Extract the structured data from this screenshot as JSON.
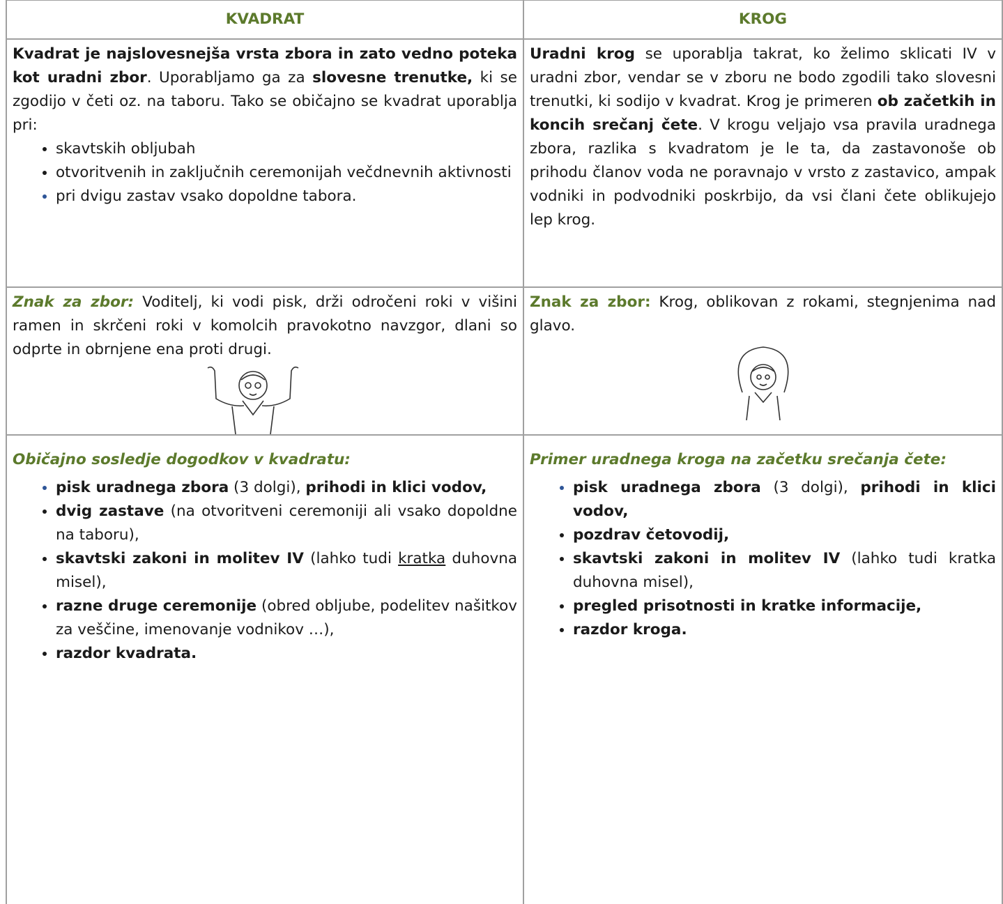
{
  "table": {
    "headers": [
      "KVADRAT",
      "KROG"
    ],
    "kvadrat": {
      "intro": [
        "Kvadrat je najslovesnejša vrsta zbora in zato vedno poteka kot uradni zbor",
        ". Uporabljamo ga za ",
        "slovesne trenutke,",
        " ki se zgodijo v četi oz. na taboru. Tako se običajno se kvadrat uporablja pri:"
      ],
      "uses": [
        "skavtskih obljubah",
        "otvoritvenih in zaključnih ceremonijah večdnevnih aktivnosti",
        "pri dvigu zastav vsako dopoldne tabora."
      ],
      "sign_label": "Znak za zbor:",
      "sign_text": " Voditelj, ki vodi pisk, drži odročeni roki v višini ramen in skrčeni roki v komolcih pravokotno navzgor, dlani so odprte in obrnjene ena proti drugi.",
      "sequence_title": "Običajno sosledje dogodkov v kvadratu:",
      "sequence": [
        [
          "pisk uradnega zbora",
          " (3 dolgi), ",
          "prihodi in klici vodov,"
        ],
        [
          "dvig zastave",
          " (na otvoritveni ceremoniji ali vsako dopoldne na taboru),"
        ],
        [
          "skavtski zakoni in molitev IV",
          " (lahko tudi ",
          "kratka",
          " duhovna misel),"
        ],
        [
          "razne druge ceremonije",
          " (obred obljube, podelitev našitkov za veščine, imenovanje vodnikov …),"
        ],
        [
          "razdor kvadrata."
        ]
      ]
    },
    "krog": {
      "intro": [
        "Uradni krog",
        " se uporablja takrat, ko želimo sklicati IV v uradni zbor, vendar se v zboru ne bodo zgodili tako slovesni trenutki, ki sodijo v kvadrat. Krog je primeren ",
        "ob začetkih in koncih srečanj čete",
        ". V krogu veljajo vsa pravila uradnega zbora, razlika s kvadratom je le ta, da zastavonoše ob prihodu članov voda ne poravnajo v vrsto z zastavico, ampak vodniki in podvodniki poskrbijo, da vsi člani čete oblikujejo lep krog."
      ],
      "sign_label": "Znak za zbor:",
      "sign_text": " Krog, oblikovan z rokami, stegnjenima nad glavo.",
      "sequence_title": "Primer uradnega kroga na začetku srečanja čete:",
      "sequence": [
        [
          "pisk uradnega zbora",
          " (3 dolgi), ",
          "prihodi in klici vodov,"
        ],
        [
          "pozdrav četovodij,"
        ],
        [
          "skavtski zakoni in molitev IV",
          " (lahko tudi kratka duhovna misel),"
        ],
        [
          "pregled prisotnosti in kratke informacije,"
        ],
        [
          "razdor kroga."
        ]
      ]
    }
  }
}
